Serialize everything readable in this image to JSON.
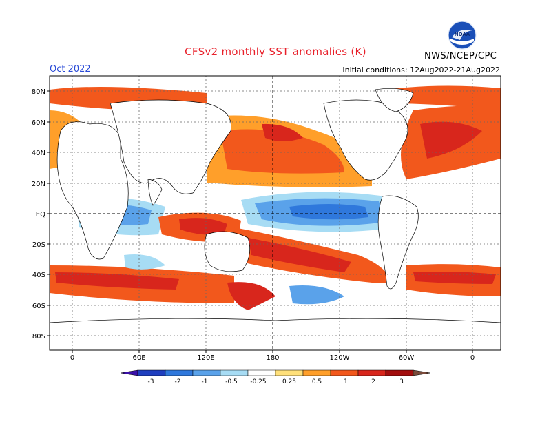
{
  "title": "CFSv2 monthly SST anomalies (K)",
  "forecast_month": "Oct 2022",
  "initial_conditions": "Initial conditions: 12Aug2022-21Aug2022",
  "agency": "NWS/NCEP/CPC",
  "logo_text": "NOAA",
  "lat_labels": [
    "80N",
    "60N",
    "40N",
    "20N",
    "EQ",
    "20S",
    "40S",
    "60S",
    "80S"
  ],
  "lon_labels": [
    "0",
    "60E",
    "120E",
    "180",
    "120W",
    "60W",
    "0"
  ],
  "colorbar": {
    "tick_labels": [
      "-3",
      "-2",
      "-1",
      "-0.5",
      "-0.25",
      "0.25",
      "0.5",
      "1",
      "2",
      "3"
    ],
    "colors": [
      "#3a10a8",
      "#1f3fbf",
      "#2f78dc",
      "#5aa2ea",
      "#a7dcf4",
      "#ffffff",
      "#ffe07a",
      "#ff9f2a",
      "#f2581c",
      "#d8261c",
      "#a30e0e",
      "#7a4a3a"
    ]
  },
  "colors": {
    "ocean_neutral": "#ffffff",
    "title": "#e8202a",
    "date": "#2a4bd7"
  }
}
